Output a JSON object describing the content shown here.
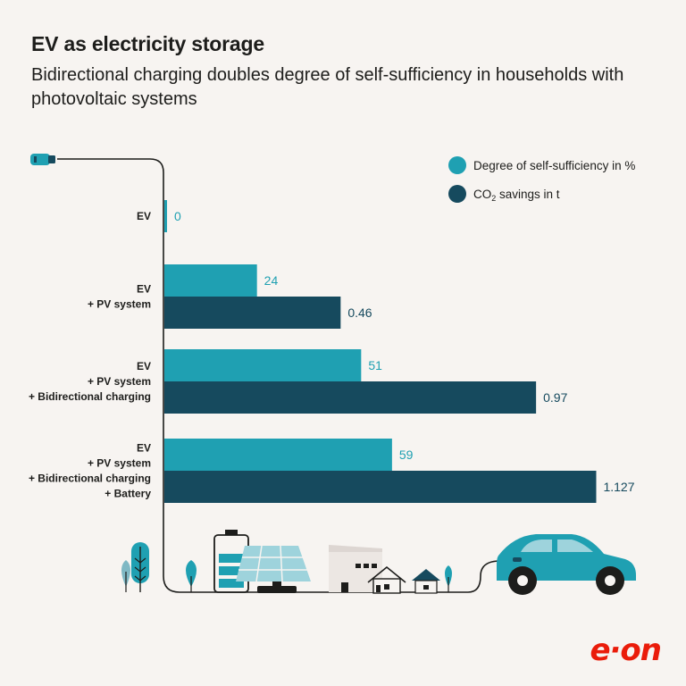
{
  "header": {
    "title": "EV as electricity storage",
    "subtitle": "Bidirectional charging doubles degree of self-sufficiency in households with photovoltaic systems"
  },
  "logo_text": "e·on",
  "colors": {
    "self_sufficiency": "#1fa0b2",
    "co2": "#164a5e",
    "background": "#f7f4f1",
    "brand": "#ea1c0a"
  },
  "chart_data": {
    "type": "bar",
    "orientation": "horizontal",
    "categories": [
      [
        "EV"
      ],
      [
        "EV",
        "+ PV system"
      ],
      [
        "EV",
        "+ PV system",
        "+ Bidirectional charging"
      ],
      [
        "EV",
        "+ PV system",
        "+ Bidirectional charging",
        "+ Battery"
      ]
    ],
    "series": [
      {
        "name": "Degree of self-sufficiency in %",
        "values": [
          0,
          24,
          51,
          59
        ],
        "labels": [
          "0",
          "24",
          "51",
          "59"
        ]
      },
      {
        "name": "CO2 savings in t",
        "values": [
          null,
          0.46,
          0.97,
          1.127
        ],
        "labels": [
          "",
          "0.46",
          "0.97",
          "1.127"
        ]
      }
    ],
    "legend": {
      "position": "top-right",
      "entries": [
        "Degree of self-sufficiency in %",
        "CO2 savings in t"
      ],
      "co2_main": "CO",
      "co2_sub": "2",
      "co2_rest": " savings in t"
    },
    "xlabel": "",
    "ylabel": "",
    "grid": false,
    "axis_ticks": false
  }
}
